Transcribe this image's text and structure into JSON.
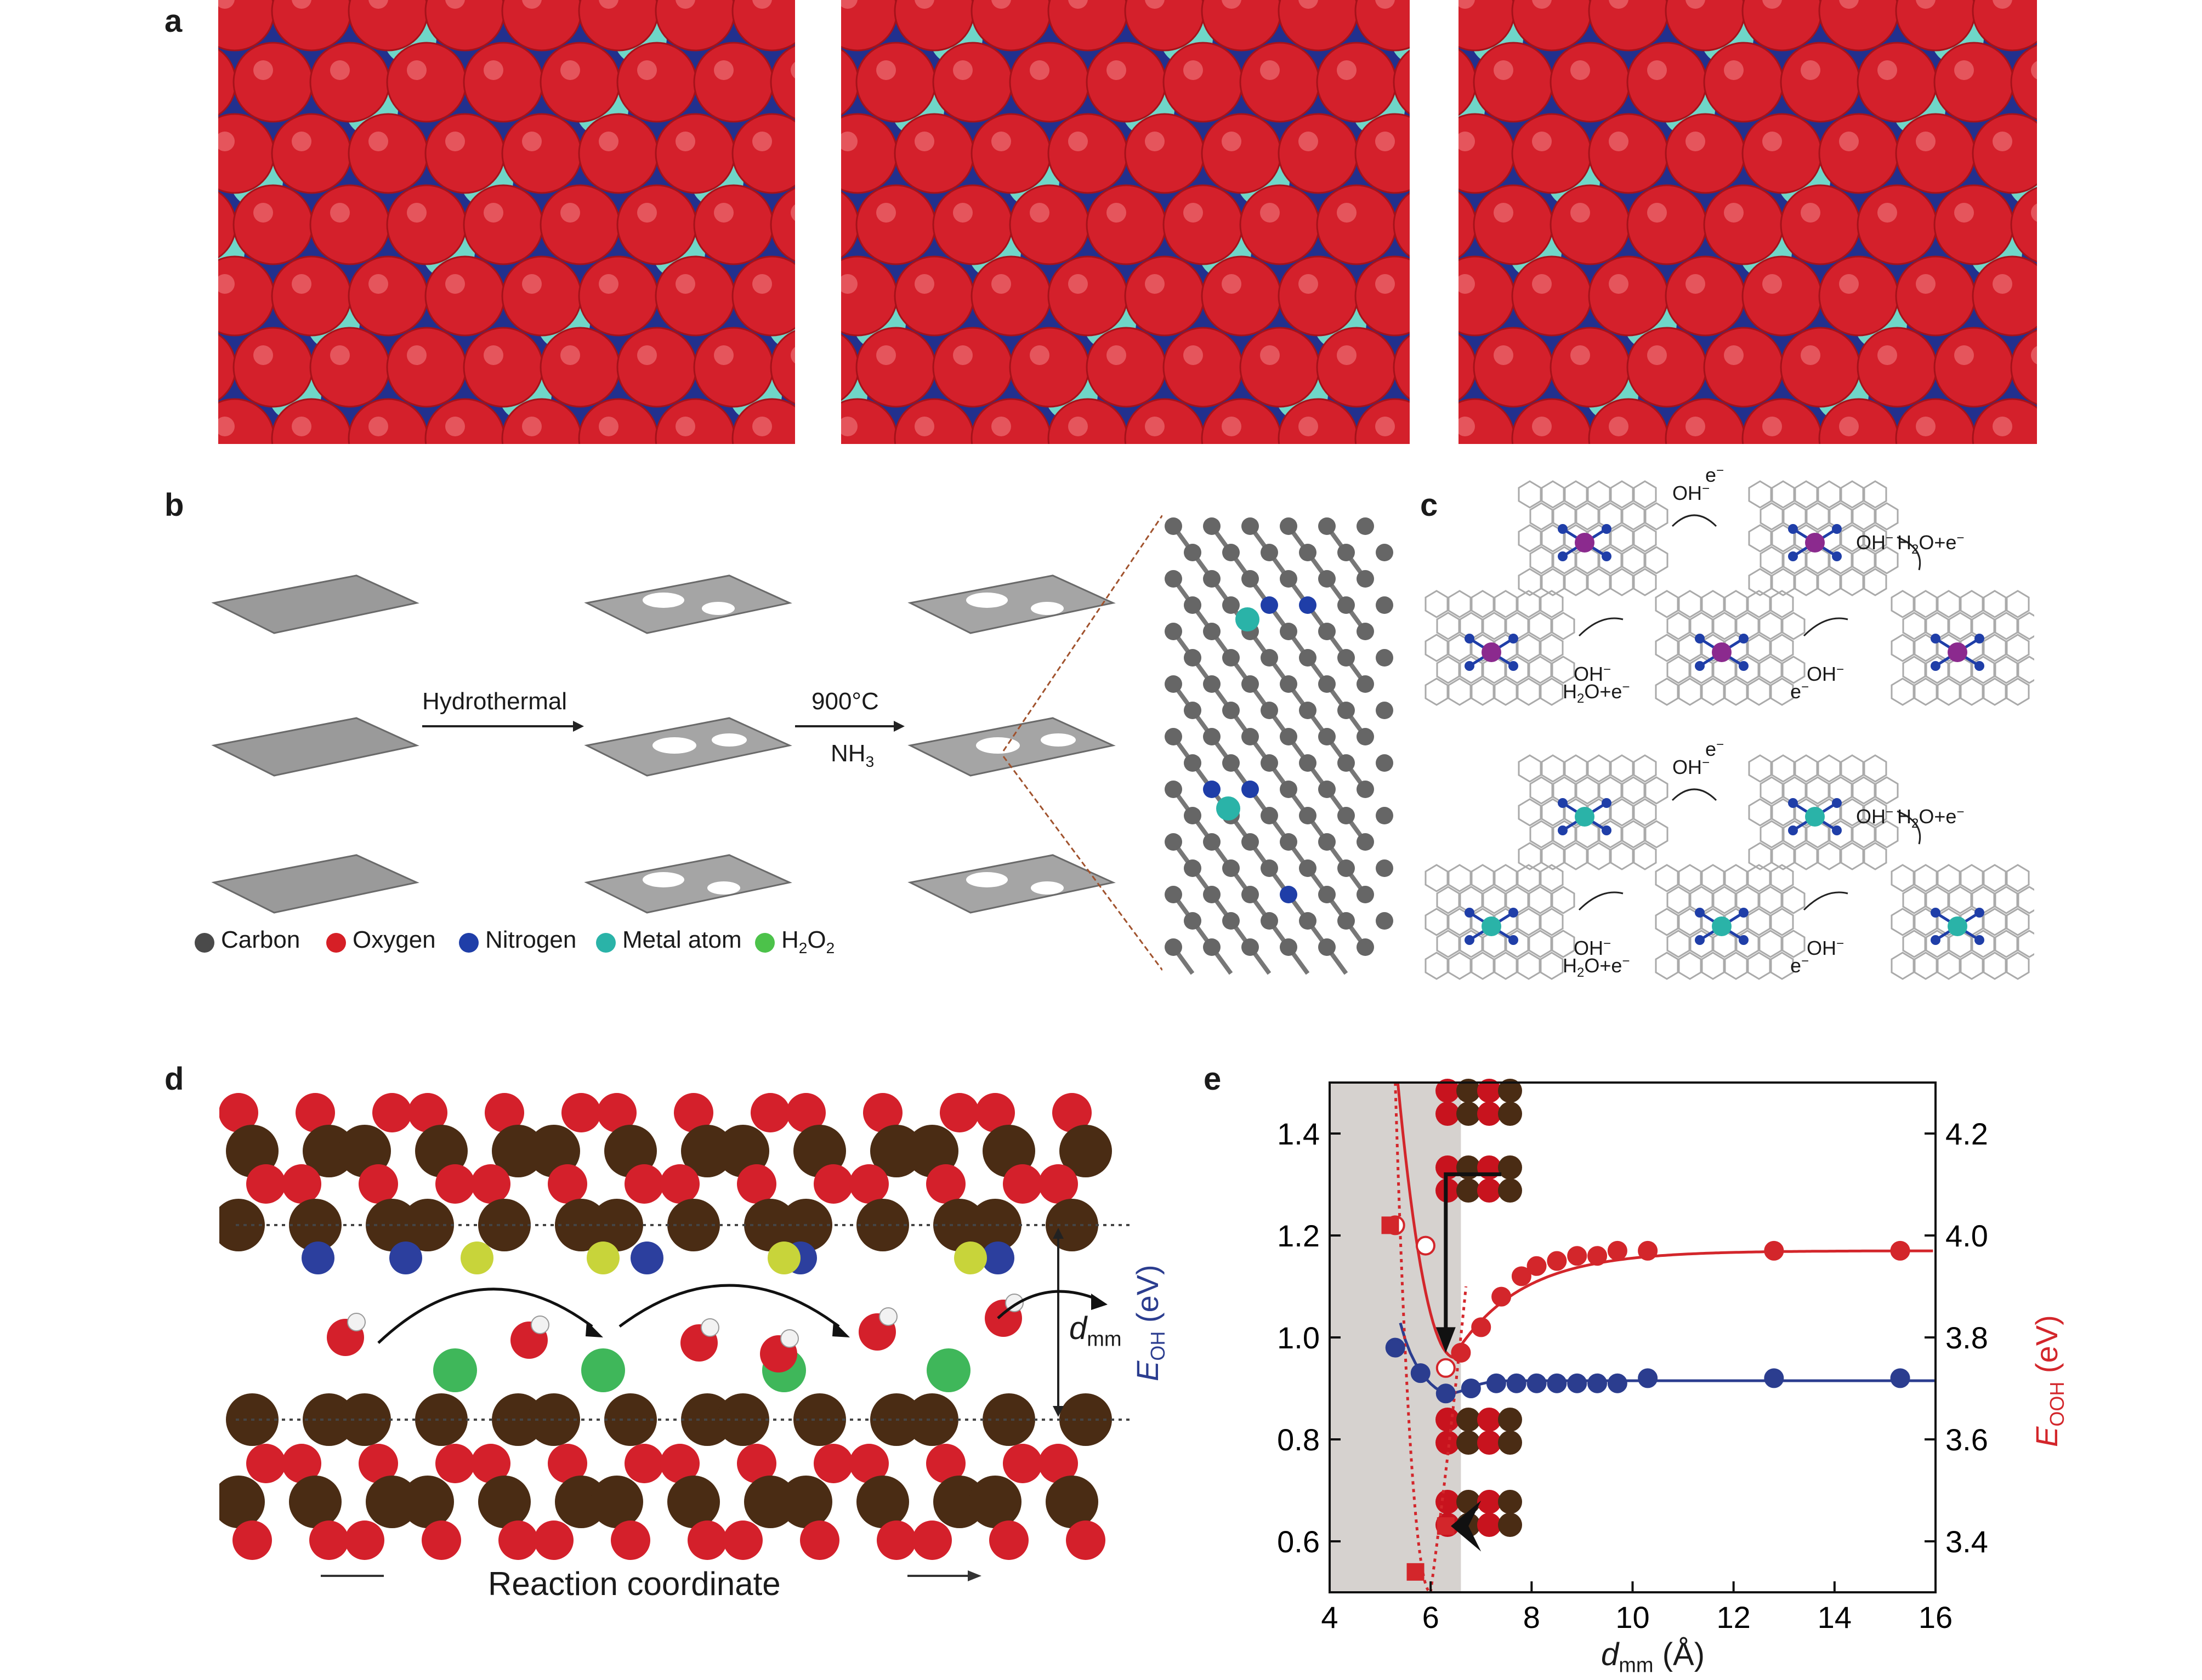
{
  "panels": {
    "a": {
      "label": "a"
    },
    "b": {
      "label": "b",
      "arrow1": "Hydrothermal",
      "arrow2_top": "900°C",
      "arrow2_bottom": "NH",
      "arrow2_bottom_sub": "3",
      "legend": [
        {
          "name": "Carbon",
          "color": "#4a4a4a"
        },
        {
          "name": "Oxygen",
          "color": "#d61f26"
        },
        {
          "name": "Nitrogen",
          "color": "#1f3ea8"
        },
        {
          "name": "Metal atom",
          "color": "#2ab3a8"
        },
        {
          "name": "H2O2",
          "color": "#4cc24a"
        }
      ],
      "legend_h2o2_main": "H",
      "legend_h2o2_s1": "2",
      "legend_h2o2_o": "O",
      "legend_h2o2_s2": "2"
    },
    "c": {
      "label": "c",
      "oh": "OH",
      "minus": "−",
      "e": "e",
      "h2o_e": "H",
      "h2o_sub": "2",
      "h2o_rest": "O+e"
    },
    "d": {
      "label": "d",
      "reaction_coordinate": "Reaction coordinate",
      "dmm_main": "d",
      "dmm_sub": "mm"
    },
    "e": {
      "label": "e"
    }
  },
  "chart_data": {
    "type": "scatter",
    "xlabel_main": "d",
    "xlabel_sub": "mm",
    "xlabel_unit": " (Å)",
    "ylabel_left_main": "E",
    "ylabel_left_sub": "OH",
    "ylabel_left_unit": " (eV)",
    "ylabel_right_main": "E",
    "ylabel_right_sub": "OOH",
    "ylabel_right_unit": " (eV)",
    "xlim": [
      4,
      16
    ],
    "ylim_left": [
      0.5,
      1.5
    ],
    "ylim_right": [
      3.3,
      4.3
    ],
    "xticks": [
      4,
      6,
      8,
      10,
      12,
      14,
      16
    ],
    "yticks_left": [
      "0.6",
      "0.8",
      "1.0",
      "1.2",
      "1.4"
    ],
    "yticks_right": [
      "3.4",
      "3.6",
      "3.8",
      "4.0",
      "4.2"
    ],
    "shaded_region_x": [
      4,
      6.6
    ],
    "series": [
      {
        "axis": "left",
        "color": "#2b3d8f",
        "x": [
          5.3,
          5.8,
          6.3,
          6.8,
          7.3,
          7.7,
          8.1,
          8.5,
          8.9,
          9.3,
          9.7,
          10.3,
          12.8,
          15.3
        ],
        "y": [
          0.98,
          0.93,
          0.89,
          0.9,
          0.91,
          0.91,
          0.91,
          0.91,
          0.91,
          0.91,
          0.91,
          0.92,
          0.92,
          0.92
        ]
      },
      {
        "axis": "right",
        "color": "#d3262b",
        "x": [
          5.3,
          5.9,
          6.3,
          6.6,
          7.0,
          7.4,
          7.8,
          8.1,
          8.5,
          8.9,
          9.3,
          9.7,
          10.3,
          12.8,
          15.3
        ],
        "y": [
          4.02,
          3.98,
          3.74,
          3.77,
          3.82,
          3.88,
          3.92,
          3.94,
          3.95,
          3.96,
          3.96,
          3.97,
          3.97,
          3.97,
          3.97
        ]
      },
      {
        "axis": "right",
        "color": "#d3262b",
        "marker": "square",
        "x": [
          5.2,
          5.7,
          6.3
        ],
        "y": [
          4.02,
          3.34,
          3.43
        ]
      }
    ]
  }
}
